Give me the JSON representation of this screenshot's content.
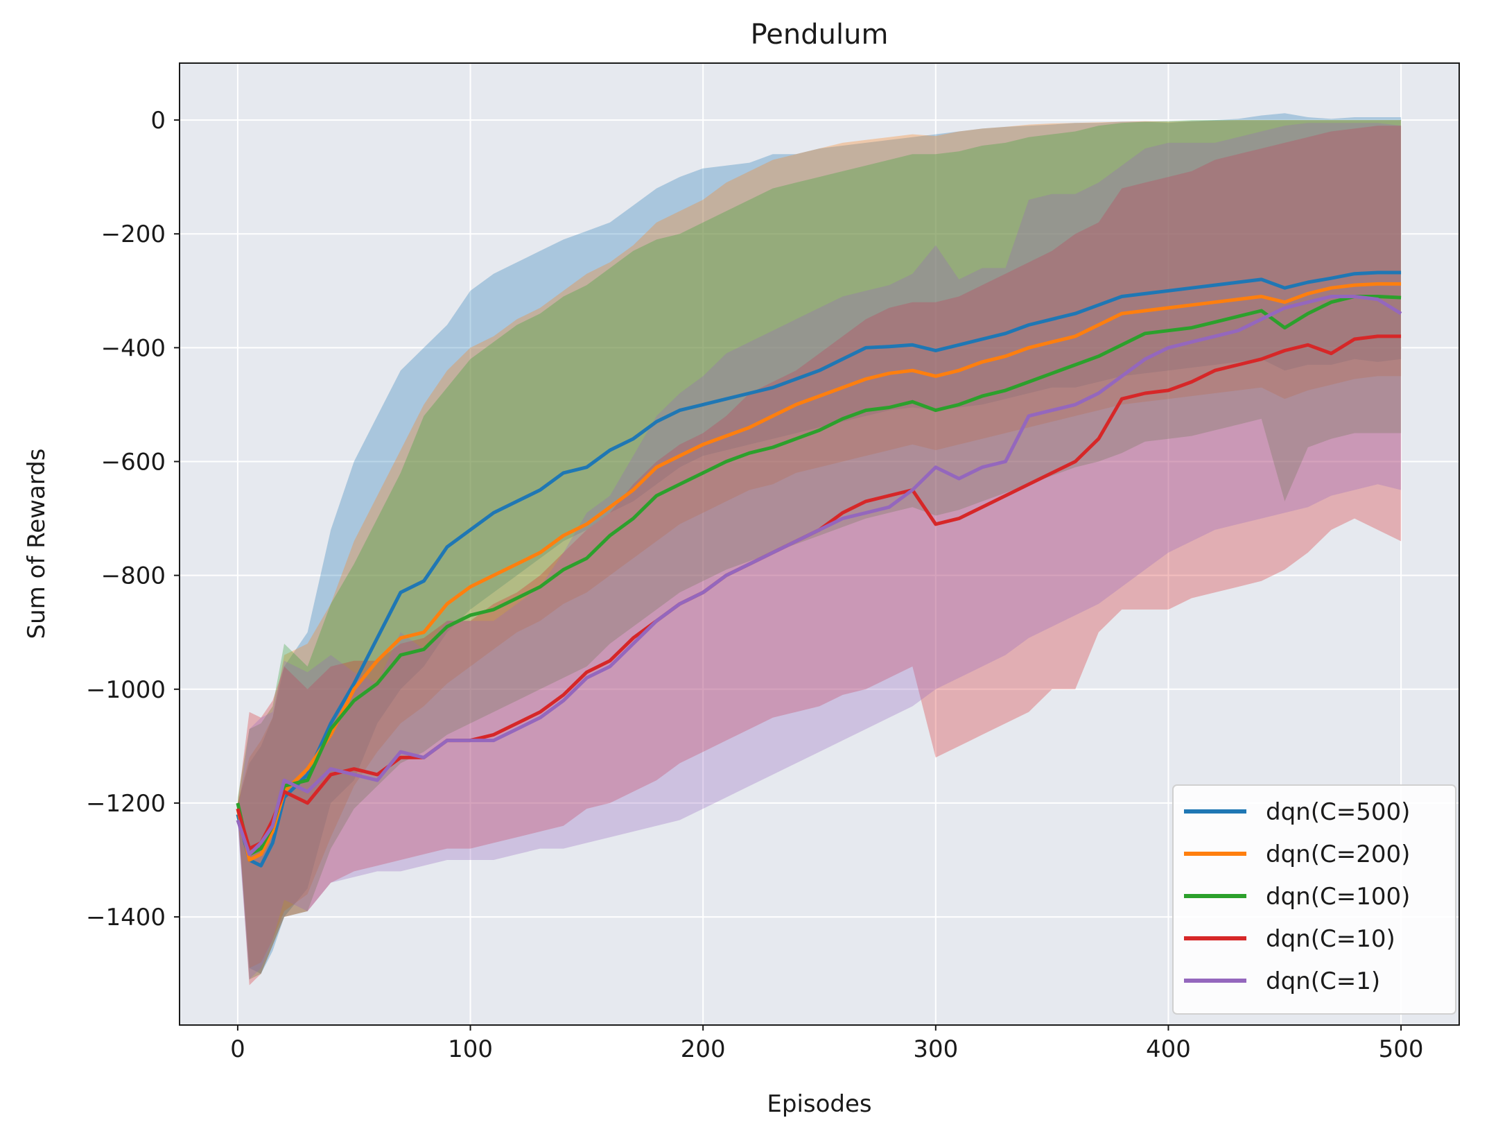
{
  "chart_data": {
    "type": "line",
    "title": "Pendulum",
    "xlabel": "Episodes",
    "ylabel": "Sum of Rewards",
    "xlim": [
      -25,
      525
    ],
    "ylim": [
      -1590,
      100
    ],
    "xticks": [
      0,
      100,
      200,
      300,
      400,
      500
    ],
    "yticks": [
      0,
      -200,
      -400,
      -600,
      -800,
      -1000,
      -1200,
      -1400
    ],
    "xtick_labels": [
      "0",
      "100",
      "200",
      "300",
      "400",
      "500"
    ],
    "ytick_labels": [
      "0",
      "−200",
      "−400",
      "−600",
      "−800",
      "−1000",
      "−1200",
      "−1400"
    ],
    "grid": true,
    "legend_position": "lower-right",
    "background": "#e6e9ef",
    "series": [
      {
        "name": "dqn(C=500)",
        "color": "#1f77b4",
        "x": [
          0,
          5,
          10,
          15,
          20,
          30,
          40,
          50,
          60,
          70,
          80,
          90,
          100,
          110,
          120,
          130,
          140,
          150,
          160,
          170,
          180,
          190,
          200,
          210,
          220,
          230,
          240,
          250,
          260,
          270,
          280,
          290,
          300,
          310,
          320,
          330,
          340,
          350,
          360,
          370,
          380,
          390,
          400,
          410,
          420,
          430,
          440,
          450,
          460,
          470,
          480,
          490,
          500
        ],
        "mean": [
          -1220,
          -1300,
          -1310,
          -1270,
          -1190,
          -1150,
          -1060,
          -990,
          -910,
          -830,
          -810,
          -750,
          -720,
          -690,
          -670,
          -650,
          -620,
          -610,
          -580,
          -560,
          -530,
          -510,
          -500,
          -490,
          -480,
          -470,
          -455,
          -440,
          -420,
          -400,
          -398,
          -395,
          -405,
          -395,
          -385,
          -375,
          -360,
          -350,
          -340,
          -325,
          -310,
          -305,
          -300,
          -295,
          -290,
          -285,
          -280,
          -295,
          -285,
          -278,
          -270,
          -268,
          -268
        ],
        "lower": [
          -1230,
          -1490,
          -1500,
          -1460,
          -1400,
          -1350,
          -1200,
          -1160,
          -1060,
          -1000,
          -960,
          -900,
          -860,
          -830,
          -800,
          -770,
          -740,
          -720,
          -690,
          -670,
          -640,
          -610,
          -590,
          -580,
          -570,
          -560,
          -550,
          -540,
          -530,
          -520,
          -510,
          -505,
          -510,
          -505,
          -500,
          -490,
          -480,
          -470,
          -470,
          -460,
          -450,
          -445,
          -440,
          -435,
          -430,
          -425,
          -420,
          -440,
          -430,
          -430,
          -420,
          -425,
          -420
        ],
        "upper": [
          -1200,
          -1130,
          -1100,
          -1050,
          -960,
          -900,
          -720,
          -600,
          -520,
          -440,
          -400,
          -360,
          -300,
          -270,
          -250,
          -230,
          -210,
          -195,
          -180,
          -150,
          -120,
          -100,
          -85,
          -80,
          -75,
          -60,
          -60,
          -50,
          -45,
          -40,
          -35,
          -30,
          -25,
          -20,
          -15,
          -12,
          -10,
          -8,
          -5,
          -5,
          -3,
          -3,
          -5,
          -2,
          0,
          2,
          8,
          12,
          5,
          2,
          5,
          5,
          5
        ]
      },
      {
        "name": "dqn(C=200)",
        "color": "#ff7f0e",
        "x": [
          0,
          5,
          10,
          15,
          20,
          30,
          40,
          50,
          60,
          70,
          80,
          90,
          100,
          110,
          120,
          130,
          140,
          150,
          160,
          170,
          180,
          190,
          200,
          210,
          220,
          230,
          240,
          250,
          260,
          270,
          280,
          290,
          300,
          310,
          320,
          330,
          340,
          350,
          360,
          370,
          380,
          390,
          400,
          410,
          420,
          430,
          440,
          450,
          460,
          470,
          480,
          490,
          500
        ],
        "mean": [
          -1210,
          -1300,
          -1290,
          -1250,
          -1180,
          -1140,
          -1080,
          -1000,
          -950,
          -910,
          -900,
          -850,
          -820,
          -800,
          -780,
          -760,
          -730,
          -710,
          -680,
          -650,
          -610,
          -590,
          -570,
          -555,
          -540,
          -520,
          -500,
          -485,
          -470,
          -455,
          -445,
          -440,
          -450,
          -440,
          -425,
          -415,
          -400,
          -390,
          -380,
          -360,
          -340,
          -335,
          -330,
          -325,
          -320,
          -315,
          -310,
          -320,
          -305,
          -295,
          -290,
          -288,
          -288
        ],
        "lower": [
          -1220,
          -1490,
          -1480,
          -1440,
          -1390,
          -1360,
          -1260,
          -1170,
          -1110,
          -1060,
          -1030,
          -990,
          -960,
          -930,
          -900,
          -880,
          -850,
          -830,
          -800,
          -770,
          -740,
          -710,
          -690,
          -670,
          -650,
          -640,
          -620,
          -610,
          -600,
          -590,
          -580,
          -570,
          -580,
          -570,
          -560,
          -550,
          -540,
          -530,
          -520,
          -510,
          -500,
          -495,
          -490,
          -485,
          -480,
          -475,
          -470,
          -490,
          -475,
          -465,
          -455,
          -450,
          -450
        ],
        "upper": [
          -1200,
          -1120,
          -1090,
          -1050,
          -940,
          -920,
          -850,
          -740,
          -660,
          -580,
          -500,
          -440,
          -400,
          -380,
          -350,
          -330,
          -300,
          -270,
          -250,
          -220,
          -180,
          -160,
          -140,
          -110,
          -90,
          -70,
          -60,
          -50,
          -40,
          -35,
          -30,
          -25,
          -28,
          -20,
          -15,
          -12,
          -8,
          -6,
          -5,
          -4,
          -3,
          -2,
          -3,
          -2,
          -1,
          0,
          0,
          0,
          0,
          0,
          0,
          0,
          0
        ]
      },
      {
        "name": "dqn(C=100)",
        "color": "#2ca02c",
        "x": [
          0,
          5,
          10,
          15,
          20,
          30,
          40,
          50,
          60,
          70,
          80,
          90,
          100,
          110,
          120,
          130,
          140,
          150,
          160,
          170,
          180,
          190,
          200,
          210,
          220,
          230,
          240,
          250,
          260,
          270,
          280,
          290,
          300,
          310,
          320,
          330,
          340,
          350,
          360,
          370,
          380,
          390,
          400,
          410,
          420,
          430,
          440,
          450,
          460,
          470,
          480,
          490,
          500
        ],
        "mean": [
          -1200,
          -1290,
          -1280,
          -1240,
          -1170,
          -1160,
          -1070,
          -1020,
          -990,
          -940,
          -930,
          -890,
          -870,
          -860,
          -840,
          -820,
          -790,
          -770,
          -730,
          -700,
          -660,
          -640,
          -620,
          -600,
          -585,
          -575,
          -560,
          -545,
          -525,
          -510,
          -505,
          -495,
          -510,
          -500,
          -485,
          -475,
          -460,
          -445,
          -430,
          -415,
          -395,
          -375,
          -370,
          -365,
          -355,
          -345,
          -335,
          -365,
          -340,
          -320,
          -310,
          -310,
          -312
        ],
        "lower": [
          -1210,
          -1510,
          -1500,
          -1450,
          -1400,
          -1390,
          -1280,
          -1210,
          -1170,
          -1130,
          -1110,
          -1080,
          -1060,
          -1040,
          -1020,
          -1000,
          -980,
          -960,
          -920,
          -890,
          -860,
          -830,
          -810,
          -790,
          -775,
          -760,
          -745,
          -730,
          -715,
          -700,
          -690,
          -680,
          -695,
          -685,
          -670,
          -655,
          -640,
          -625,
          -610,
          -600,
          -585,
          -565,
          -560,
          -555,
          -545,
          -535,
          -525,
          -670,
          -575,
          -560,
          -550,
          -550,
          -550
        ],
        "upper": [
          -1190,
          -1070,
          -1060,
          -1030,
          -920,
          -960,
          -850,
          -780,
          -700,
          -620,
          -520,
          -470,
          -420,
          -390,
          -360,
          -340,
          -310,
          -290,
          -260,
          -230,
          -210,
          -200,
          -180,
          -160,
          -140,
          -120,
          -110,
          -100,
          -90,
          -80,
          -70,
          -60,
          -60,
          -55,
          -45,
          -40,
          -30,
          -25,
          -20,
          -10,
          -5,
          -3,
          -2,
          0,
          0,
          0,
          0,
          0,
          0,
          0,
          0,
          0,
          0
        ]
      },
      {
        "name": "dqn(C=10)",
        "color": "#d62728",
        "x": [
          0,
          5,
          10,
          15,
          20,
          30,
          40,
          50,
          60,
          70,
          80,
          90,
          100,
          110,
          120,
          130,
          140,
          150,
          160,
          170,
          180,
          190,
          200,
          210,
          220,
          230,
          240,
          250,
          260,
          270,
          280,
          290,
          300,
          310,
          320,
          330,
          340,
          350,
          360,
          370,
          380,
          390,
          400,
          410,
          420,
          430,
          440,
          450,
          460,
          470,
          480,
          490,
          500
        ],
        "mean": [
          -1210,
          -1280,
          -1270,
          -1230,
          -1180,
          -1200,
          -1150,
          -1140,
          -1150,
          -1120,
          -1120,
          -1090,
          -1090,
          -1080,
          -1060,
          -1040,
          -1010,
          -970,
          -950,
          -910,
          -880,
          -850,
          -830,
          -800,
          -780,
          -760,
          -740,
          -720,
          -690,
          -670,
          -660,
          -650,
          -710,
          -700,
          -680,
          -660,
          -640,
          -620,
          -600,
          -560,
          -490,
          -480,
          -475,
          -460,
          -440,
          -430,
          -420,
          -405,
          -395,
          -410,
          -385,
          -380,
          -380
        ],
        "lower": [
          -1220,
          -1520,
          -1500,
          -1450,
          -1400,
          -1390,
          -1340,
          -1320,
          -1310,
          -1300,
          -1290,
          -1280,
          -1280,
          -1270,
          -1260,
          -1250,
          -1240,
          -1210,
          -1200,
          -1180,
          -1160,
          -1130,
          -1110,
          -1090,
          -1070,
          -1050,
          -1040,
          -1030,
          -1010,
          -1000,
          -980,
          -960,
          -1120,
          -1100,
          -1080,
          -1060,
          -1040,
          -1000,
          -1000,
          -900,
          -860,
          -860,
          -860,
          -840,
          -830,
          -820,
          -810,
          -790,
          -760,
          -720,
          -700,
          -720,
          -740
        ],
        "upper": [
          -1200,
          -1040,
          -1050,
          -1020,
          -960,
          -1000,
          -960,
          -950,
          -950,
          -920,
          -910,
          -880,
          -880,
          -850,
          -830,
          -800,
          -760,
          -720,
          -690,
          -640,
          -600,
          -570,
          -550,
          -520,
          -480,
          -460,
          -440,
          -410,
          -380,
          -350,
          -330,
          -320,
          -320,
          -310,
          -290,
          -270,
          -250,
          -230,
          -200,
          -180,
          -120,
          -110,
          -100,
          -90,
          -70,
          -60,
          -50,
          -40,
          -30,
          -20,
          -15,
          -10,
          -10
        ]
      },
      {
        "name": "dqn(C=1)",
        "color": "#9467bd",
        "x": [
          0,
          5,
          10,
          15,
          20,
          30,
          40,
          50,
          60,
          70,
          80,
          90,
          100,
          110,
          120,
          130,
          140,
          150,
          160,
          170,
          180,
          190,
          200,
          210,
          220,
          230,
          240,
          250,
          260,
          270,
          280,
          290,
          300,
          310,
          320,
          330,
          340,
          350,
          360,
          370,
          380,
          390,
          400,
          410,
          420,
          430,
          440,
          450,
          460,
          470,
          480,
          490,
          500
        ],
        "mean": [
          -1230,
          -1290,
          -1270,
          -1240,
          -1160,
          -1180,
          -1140,
          -1150,
          -1160,
          -1110,
          -1120,
          -1090,
          -1090,
          -1090,
          -1070,
          -1050,
          -1020,
          -980,
          -960,
          -920,
          -880,
          -850,
          -830,
          -800,
          -780,
          -760,
          -740,
          -720,
          -700,
          -690,
          -680,
          -650,
          -610,
          -630,
          -610,
          -600,
          -520,
          -510,
          -500,
          -480,
          -450,
          -420,
          -400,
          -390,
          -380,
          -370,
          -350,
          -330,
          -320,
          -310,
          -310,
          -315,
          -340
        ],
        "lower": [
          -1240,
          -1510,
          -1490,
          -1440,
          -1370,
          -1390,
          -1340,
          -1330,
          -1320,
          -1320,
          -1310,
          -1300,
          -1300,
          -1300,
          -1290,
          -1280,
          -1280,
          -1270,
          -1260,
          -1250,
          -1240,
          -1230,
          -1210,
          -1190,
          -1170,
          -1150,
          -1130,
          -1110,
          -1090,
          -1070,
          -1050,
          -1030,
          -1000,
          -980,
          -960,
          -940,
          -910,
          -890,
          -870,
          -850,
          -820,
          -790,
          -760,
          -740,
          -720,
          -710,
          -700,
          -690,
          -680,
          -660,
          -650,
          -640,
          -650
        ],
        "upper": [
          -1220,
          -1070,
          -1050,
          -1040,
          -950,
          -970,
          -940,
          -970,
          -990,
          -900,
          -930,
          -880,
          -880,
          -880,
          -850,
          -820,
          -760,
          -690,
          -660,
          -590,
          -520,
          -480,
          -450,
          -410,
          -390,
          -370,
          -350,
          -330,
          -310,
          -300,
          -290,
          -270,
          -220,
          -280,
          -260,
          -260,
          -140,
          -130,
          -130,
          -110,
          -80,
          -50,
          -40,
          -40,
          -40,
          -30,
          -20,
          -10,
          -5,
          -5,
          -5,
          -5,
          -10
        ]
      }
    ]
  }
}
